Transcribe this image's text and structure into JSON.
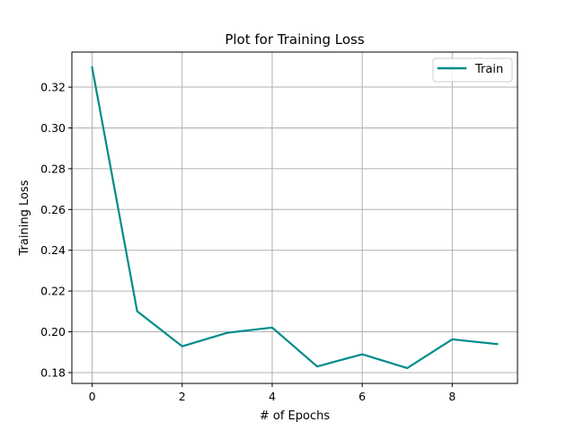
{
  "chart_data": {
    "type": "line",
    "title": "Plot for Training Loss",
    "xlabel": "# of Epochs",
    "ylabel": "Training Loss",
    "x": [
      0,
      1,
      2,
      3,
      4,
      5,
      6,
      7,
      8,
      9
    ],
    "series": [
      {
        "name": "Train",
        "color": "#008b8b",
        "values": [
          0.3297,
          0.2101,
          0.1929,
          0.1995,
          0.2021,
          0.183,
          0.189,
          0.1822,
          0.1963,
          0.194
        ]
      }
    ],
    "xlim": [
      -0.45,
      9.45
    ],
    "ylim": [
      0.1747,
      0.3372
    ],
    "xticks": [
      0,
      2,
      4,
      6,
      8
    ],
    "xtick_labels": [
      "0",
      "2",
      "4",
      "6",
      "8"
    ],
    "yticks": [
      0.18,
      0.2,
      0.22,
      0.24,
      0.26,
      0.28,
      0.3,
      0.32
    ],
    "ytick_labels": [
      "0.18",
      "0.20",
      "0.22",
      "0.24",
      "0.26",
      "0.28",
      "0.30",
      "0.32"
    ],
    "grid": true,
    "legend_position": "top-right"
  }
}
